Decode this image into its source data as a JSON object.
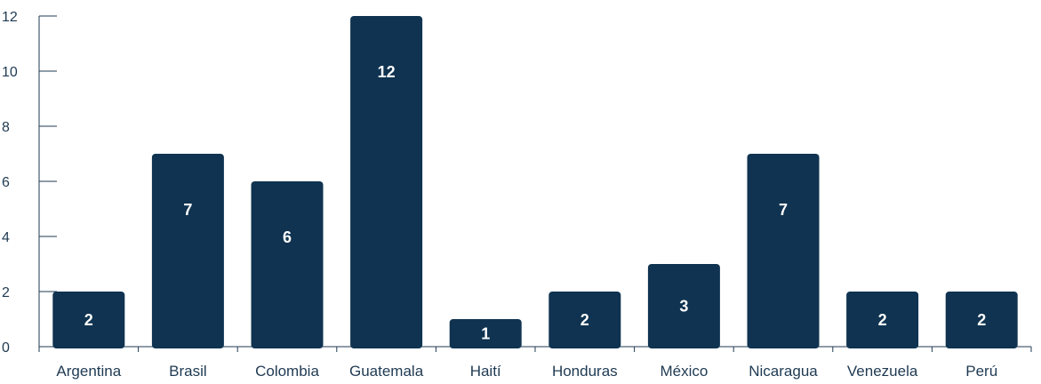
{
  "chart_data": {
    "type": "bar",
    "title": "",
    "xlabel": "",
    "ylabel": "",
    "categories": [
      "Argentina",
      "Brasil",
      "Colombia",
      "Guatemala",
      "Haití",
      "Honduras",
      "México",
      "Nicaragua",
      "Venezuela",
      "Perú"
    ],
    "values": [
      2,
      7,
      6,
      12,
      1,
      2,
      3,
      7,
      2,
      2
    ],
    "ylim": [
      0,
      12
    ],
    "yticks": [
      0,
      2,
      4,
      6,
      8,
      10,
      12
    ],
    "grid": false,
    "legend": "none",
    "data_labels": true
  },
  "colors": {
    "bar": "#0f3350",
    "axis": "#1f3a52",
    "data_label": "#ffffff"
  }
}
